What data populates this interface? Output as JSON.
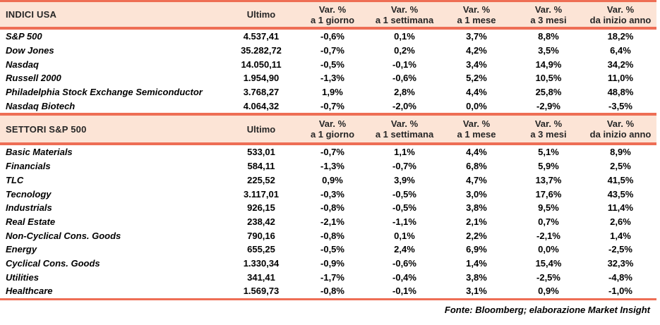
{
  "footer": {
    "source_text": "Fonte: Bloomberg; elaborazione Market Insight"
  },
  "colors": {
    "accent_line": "#ee6e55",
    "header_bg": "#fce4d6",
    "header_text": "#262626",
    "body_text": "#000000"
  },
  "chart_data": [
    {
      "type": "table",
      "title": "INDICI USA",
      "layout": {
        "header_bg": "#fce4d6",
        "rule_color": "#ee6e55",
        "value_alignment": "center"
      },
      "columns": {
        "name_header": "INDICI USA",
        "ultimo": "Ultimo",
        "var_label": "Var. %",
        "periods": [
          "a 1 giorno",
          "a 1 settimana",
          "a 1 mese",
          "a 3 mesi",
          "da inizio anno"
        ]
      },
      "rows": [
        {
          "name": "S&P 500",
          "ultimo": "4.537,41",
          "pct": [
            "-0,6%",
            "0,1%",
            "3,7%",
            "8,8%",
            "18,2%"
          ]
        },
        {
          "name": "Dow Jones",
          "ultimo": "35.282,72",
          "pct": [
            "-0,7%",
            "0,2%",
            "4,2%",
            "3,5%",
            "6,4%"
          ]
        },
        {
          "name": "Nasdaq",
          "ultimo": "14.050,11",
          "pct": [
            "-0,5%",
            "-0,1%",
            "3,4%",
            "14,9%",
            "34,2%"
          ]
        },
        {
          "name": "Russell 2000",
          "ultimo": "1.954,90",
          "pct": [
            "-1,3%",
            "-0,6%",
            "5,2%",
            "10,5%",
            "11,0%"
          ]
        },
        {
          "name": "Philadelphia Stock Exchange Semiconductor",
          "ultimo": "3.768,27",
          "pct": [
            "1,9%",
            "2,8%",
            "4,4%",
            "25,8%",
            "48,8%"
          ]
        },
        {
          "name": "Nasdaq Biotech",
          "ultimo": "4.064,32",
          "pct": [
            "-0,7%",
            "-2,0%",
            "0,0%",
            "-2,9%",
            "-3,5%"
          ]
        }
      ]
    },
    {
      "type": "table",
      "title": "SETTORI S&P 500",
      "layout": {
        "header_bg": "#fce4d6",
        "rule_color": "#ee6e55",
        "value_alignment": "center"
      },
      "columns": {
        "name_header": "SETTORI S&P 500",
        "ultimo": "Ultimo",
        "var_label": "Var. %",
        "periods": [
          "a 1 giorno",
          "a 1 settimana",
          "a 1 mese",
          "a 3 mesi",
          "da inizio anno"
        ]
      },
      "rows": [
        {
          "name": "Basic Materials",
          "ultimo": "533,01",
          "pct": [
            "-0,7%",
            "1,1%",
            "4,4%",
            "5,1%",
            "8,9%"
          ]
        },
        {
          "name": "Financials",
          "ultimo": "584,11",
          "pct": [
            "-1,3%",
            "-0,7%",
            "6,8%",
            "5,9%",
            "2,5%"
          ]
        },
        {
          "name": "TLC",
          "ultimo": "225,52",
          "pct": [
            "0,9%",
            "3,9%",
            "4,7%",
            "13,7%",
            "41,5%"
          ]
        },
        {
          "name": "Tecnology",
          "ultimo": "3.117,01",
          "pct": [
            "-0,3%",
            "-0,5%",
            "3,0%",
            "17,6%",
            "43,5%"
          ]
        },
        {
          "name": "Industrials",
          "ultimo": "926,15",
          "pct": [
            "-0,8%",
            "-0,5%",
            "3,8%",
            "9,5%",
            "11,4%"
          ]
        },
        {
          "name": "Real Estate",
          "ultimo": "238,42",
          "pct": [
            "-2,1%",
            "-1,1%",
            "2,1%",
            "0,7%",
            "2,6%"
          ]
        },
        {
          "name": "Non-Cyclical Cons. Goods",
          "ultimo": "790,16",
          "pct": [
            "-0,8%",
            "0,1%",
            "2,2%",
            "-2,1%",
            "1,4%"
          ]
        },
        {
          "name": "Energy",
          "ultimo": "655,25",
          "pct": [
            "-0,5%",
            "2,4%",
            "6,9%",
            "0,0%",
            "-2,5%"
          ]
        },
        {
          "name": "Cyclical Cons. Goods",
          "ultimo": "1.330,34",
          "pct": [
            "-0,9%",
            "-0,6%",
            "1,4%",
            "15,4%",
            "32,3%"
          ]
        },
        {
          "name": "Utilities",
          "ultimo": "341,41",
          "pct": [
            "-1,7%",
            "-0,4%",
            "3,8%",
            "-2,5%",
            "-4,8%"
          ]
        },
        {
          "name": "Healthcare",
          "ultimo": "1.569,73",
          "pct": [
            "-0,8%",
            "-0,1%",
            "3,1%",
            "0,9%",
            "-1,0%"
          ]
        }
      ]
    }
  ]
}
